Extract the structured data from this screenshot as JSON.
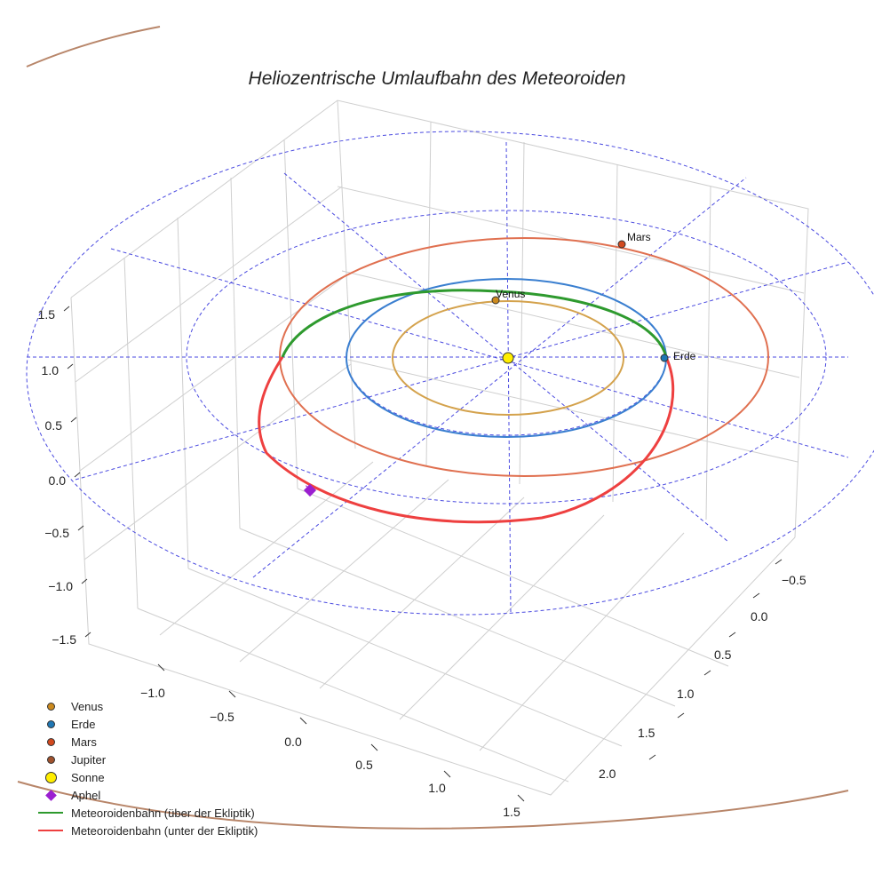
{
  "chart_data": {
    "type": "line",
    "projection": "3d",
    "title": "Heliozentrische Umlaufbahn des Meteoroiden",
    "axes": {
      "x_ticks": [
        "−1.0",
        "−0.5",
        "0.0",
        "0.5",
        "1.0",
        "1.5"
      ],
      "y_ticks": [
        "−0.5",
        "0.0",
        "0.5",
        "1.0",
        "1.5",
        "2.0"
      ],
      "z_ticks": [
        "1.5",
        "1.0",
        "0.5",
        "0.0",
        "−0.5",
        "−1.0",
        "−1.5"
      ],
      "xlim": [
        -1.5,
        1.5
      ],
      "ylim": [
        -1.0,
        2.5
      ],
      "zlim": [
        -1.5,
        1.5
      ],
      "grid": true
    },
    "planet_orbits": [
      {
        "name": "Venus",
        "radius_au": 0.72,
        "color": "#d4a24c"
      },
      {
        "name": "Erde",
        "radius_au": 1.0,
        "color": "#3a7fd0"
      },
      {
        "name": "Mars",
        "radius_au": 1.52,
        "color": "#e07050"
      },
      {
        "name": "Jupiter",
        "radius_au": 5.2,
        "color": "#b8866a"
      }
    ],
    "ecliptic_reference_circles_au": [
      1.0,
      2.0,
      3.0
    ],
    "meteoroid_orbit": {
      "perihelion_au": 1.0,
      "aphelion_au": 1.9,
      "segments": [
        {
          "name": "Meteoroidenbahn (über der Ekliptik)",
          "color": "#2e9a2e"
        },
        {
          "name": "Meteoroidenbahn (unter der Ekliptik)",
          "color": "#ee4040"
        }
      ]
    },
    "markers": [
      {
        "name": "Venus",
        "label": "Venus",
        "color": "#cc8a1e"
      },
      {
        "name": "Erde",
        "label": "Erde",
        "color": "#1f77b4"
      },
      {
        "name": "Mars",
        "label": "Mars",
        "color": "#d2491e"
      },
      {
        "name": "Sonne",
        "label": "",
        "color": "#ffee00"
      },
      {
        "name": "Aphel",
        "label": "",
        "color": "#9b1fd0"
      }
    ],
    "legend": {
      "position": "bottom-left",
      "entries": [
        {
          "label": "Venus",
          "symbol": "dot",
          "color": "#cc8a1e"
        },
        {
          "label": "Erde",
          "symbol": "dot",
          "color": "#1f77b4"
        },
        {
          "label": "Mars",
          "symbol": "dot",
          "color": "#d2491e"
        },
        {
          "label": "Jupiter",
          "symbol": "dot",
          "color": "#a0522d"
        },
        {
          "label": "Sonne",
          "symbol": "bigdot",
          "color": "#ffee00"
        },
        {
          "label": "Aphel",
          "symbol": "diamond",
          "color": "#9b1fd0"
        },
        {
          "label": "Meteoroidenbahn (über der Ekliptik)",
          "symbol": "line",
          "color": "#2e9a2e"
        },
        {
          "label": "Meteoroidenbahn (unter der Ekliptik)",
          "symbol": "line",
          "color": "#ee4040"
        }
      ]
    }
  }
}
